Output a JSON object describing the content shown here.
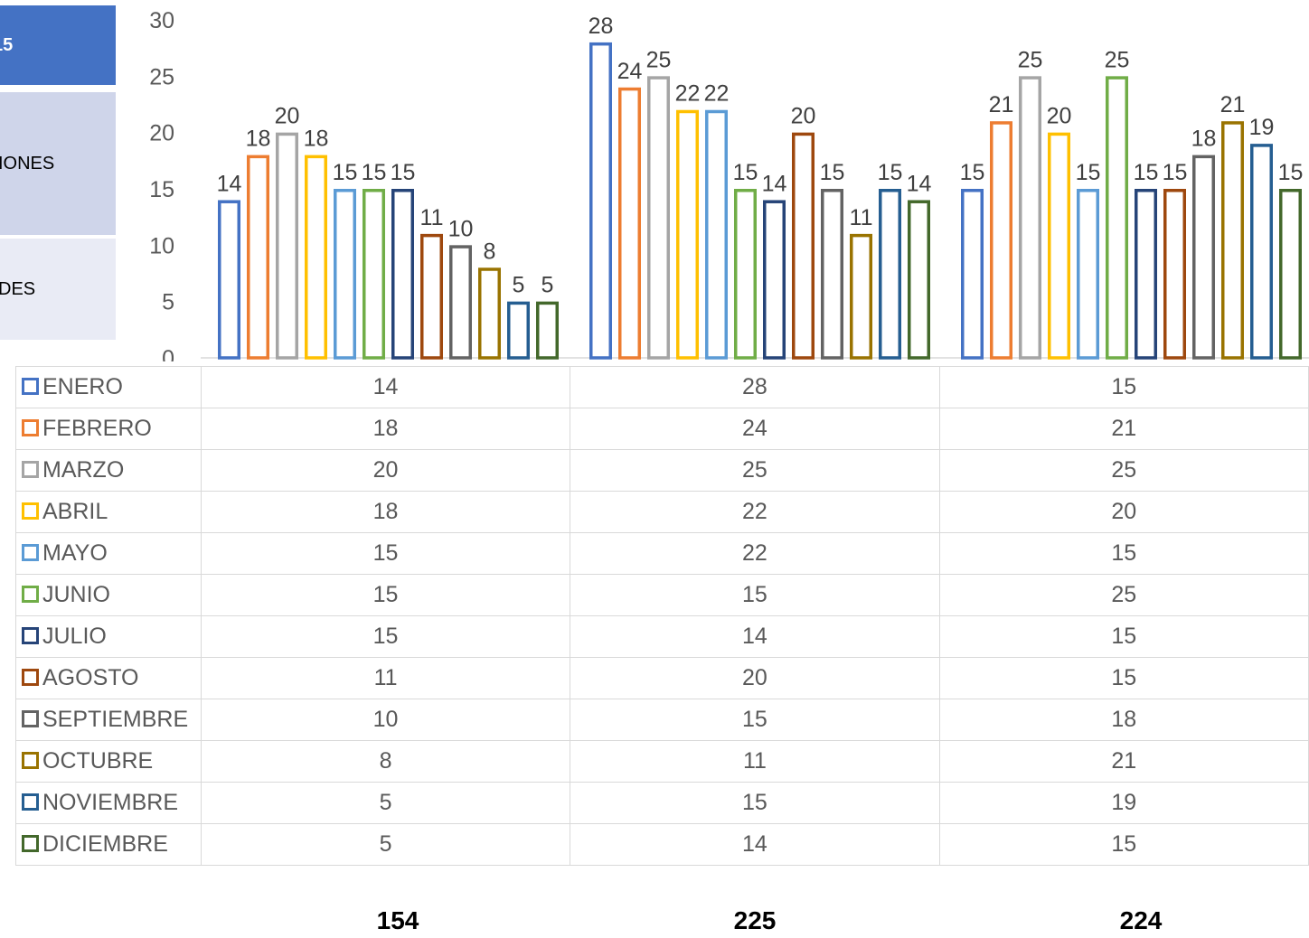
{
  "side_panel": {
    "items": [
      {
        "label": "15"
      },
      {
        "label": "IONES"
      },
      {
        "label": "DES"
      }
    ]
  },
  "chart_data": {
    "type": "bar",
    "title": "",
    "xlabel": "",
    "ylabel": "",
    "ylim": [
      0,
      30
    ],
    "yticks": [
      0,
      5,
      10,
      15,
      20,
      25,
      30
    ],
    "grid": false,
    "legend": "data-table",
    "bar_style": "outline",
    "categories": [
      "154",
      "225",
      "224"
    ],
    "series": [
      {
        "name": "ENERO",
        "color": "#4472c4",
        "values": [
          14,
          28,
          15
        ]
      },
      {
        "name": "FEBRERO",
        "color": "#ed7d31",
        "values": [
          18,
          24,
          21
        ]
      },
      {
        "name": "MARZO",
        "color": "#a5a5a5",
        "values": [
          20,
          25,
          25
        ]
      },
      {
        "name": "ABRIL",
        "color": "#ffc000",
        "values": [
          18,
          22,
          20
        ]
      },
      {
        "name": "MAYO",
        "color": "#5b9bd5",
        "values": [
          15,
          22,
          15
        ]
      },
      {
        "name": "JUNIO",
        "color": "#70ad47",
        "values": [
          15,
          15,
          25
        ]
      },
      {
        "name": "JULIO",
        "color": "#264478",
        "values": [
          15,
          14,
          15
        ]
      },
      {
        "name": "AGOSTO",
        "color": "#9e480e",
        "values": [
          11,
          20,
          15
        ]
      },
      {
        "name": "SEPTIEMBRE",
        "color": "#636363",
        "values": [
          10,
          15,
          18
        ]
      },
      {
        "name": "OCTUBRE",
        "color": "#997300",
        "values": [
          8,
          11,
          21
        ]
      },
      {
        "name": "NOVIEMBRE",
        "color": "#255e91",
        "values": [
          5,
          15,
          19
        ]
      },
      {
        "name": "DICIEMBRE",
        "color": "#43682b",
        "values": [
          5,
          14,
          15
        ]
      }
    ]
  }
}
